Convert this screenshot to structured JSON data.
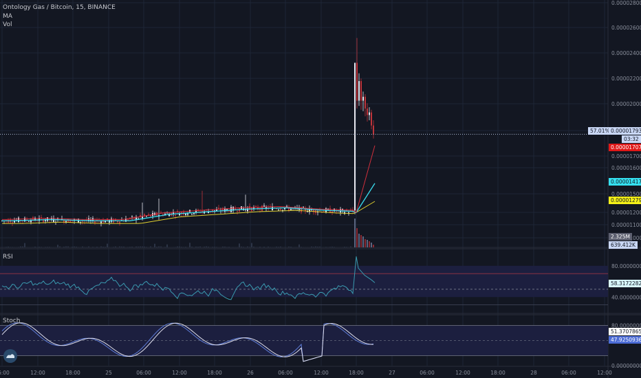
{
  "header": {
    "symbol": "Ontology Gas / Bitcoin, 15, BINANCE",
    "ma_label": "MA",
    "vol_label": "Vol"
  },
  "price_axis_ticks": [
    "0.00002800",
    "0.00002600",
    "0.00002400",
    "0.00002200",
    "0.00002000",
    "0.00001900",
    "0.00001700",
    "0.00001600",
    "0.00001500",
    "0.00001200",
    "0.00001100",
    "0.00001000"
  ],
  "time_axis_ticks": [
    "06:00",
    "12:00",
    "18:00",
    "25",
    "06:00",
    "12:00",
    "18:00",
    "26",
    "06:00",
    "12:00",
    "18:00",
    "27",
    "06:00",
    "12:00",
    "18:00",
    "28",
    "06:00",
    "12:00"
  ],
  "labels": {
    "change_pct": "57.01%",
    "last_price": "0.00001793",
    "countdown": "03:32",
    "ma_red": "0.00001707",
    "ma_cyan": "0.00001417",
    "ma_yellow": "0.00001279",
    "vol_a": "2.325M",
    "vol_b": "639.412K"
  },
  "rsi": {
    "title": "RSI",
    "ticks": [
      "80.00000000",
      "40.00000000"
    ],
    "value": "58.31722821"
  },
  "stoch": {
    "title": "Stoch",
    "ticks": [
      "80.00000000",
      "0.00000000"
    ],
    "k_value": "51.37078652",
    "d_value": "47.92509363"
  },
  "colors": {
    "background": "#131722",
    "grid": "#1e2636",
    "candle_up": "#e8e8f0",
    "candle_down": "#c0343a",
    "ma_red": "#d12f3c",
    "ma_cyan": "#38d4e6",
    "ma_yellow": "#e1d130",
    "rsi_line": "#3a9bb0",
    "rsi_band_fill": "#1c1f3f",
    "stoch_k": "#5f7dd8",
    "stoch_d": "#e0e0f0"
  },
  "chart_data": [
    {
      "type": "candlestick",
      "title": "Ontology Gas / Bitcoin, 15, BINANCE",
      "interval": "15",
      "x": [
        "24 06:00",
        "24 12:00",
        "24 18:00",
        "25 00:00",
        "25 06:00",
        "25 12:00",
        "25 18:00",
        "26 00:00",
        "26 06:00",
        "26 12:00",
        "26 18:00"
      ],
      "close": [
        1.13e-05,
        1.14e-05,
        1.13e-05,
        1.13e-05,
        1.18e-05,
        1.2e-05,
        1.22e-05,
        1.23e-05,
        1.21e-05,
        1.2e-05,
        1.793e-05
      ],
      "spike_high": 2.53e-05,
      "last_price": 1.793e-05,
      "change_percent": 57.01,
      "ylim": [
        1e-05,
        2.8e-05
      ],
      "moving_averages": [
        {
          "value": 1.707e-05
        },
        {
          "value": 1.417e-05
        },
        {
          "value": 1.279e-05
        }
      ],
      "volume_labels": [
        "2.325M",
        "639.412K"
      ]
    },
    {
      "type": "line",
      "title": "RSI",
      "value": 58.31722821,
      "bands": [
        80,
        40
      ],
      "ylim": [
        20,
        100
      ]
    },
    {
      "type": "line",
      "title": "Stoch",
      "series": [
        {
          "value": 51.37078652
        },
        {
          "value": 47.92509363
        }
      ],
      "bands": [
        80,
        20
      ],
      "ylim": [
        0,
        100
      ]
    }
  ]
}
